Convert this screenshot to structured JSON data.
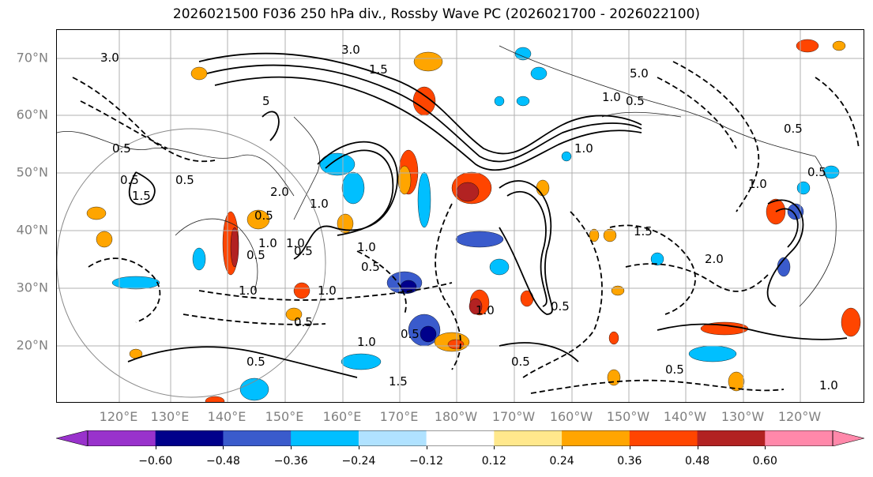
{
  "title": "2026021500 F036 250 hPa div., Rossby Wave PC (2026021700 - 2026022100)",
  "map": {
    "projection": "PlateCarree, Pacific-centered",
    "lon_range": [
      "115°E",
      "115°W"
    ],
    "lat_range": [
      "10°N",
      "75°N"
    ],
    "gridlines": true,
    "gridline_color": "#b0b0b0",
    "latitude_labels": [
      "20°N",
      "30°N",
      "40°N",
      "50°N",
      "60°N",
      "70°N"
    ],
    "longitude_labels": [
      "120°E",
      "130°E",
      "140°E",
      "150°E",
      "160°E",
      "170°E",
      "180°W",
      "170°W",
      "160°W",
      "150°W",
      "140°W",
      "130°W",
      "120°W"
    ],
    "contour_labels": [
      "3.0",
      "5",
      "3.0",
      "1.5",
      "0.5",
      "1.5",
      "0.5",
      "0.5",
      "2.0",
      "1.0",
      "1.0",
      "0.5",
      "0.5",
      "1.0",
      "0.5",
      "1.0",
      "1.0",
      "0.5",
      "1.0",
      "1.5",
      "0.5",
      "0.5",
      "1.0",
      "0.5",
      "1.0",
      "0.5",
      "0.5",
      "0.5",
      "0.5",
      "1.0",
      "2.0",
      "1.5",
      "5.0",
      "1.0",
      "1.0",
      "0.5",
      "0.5",
      "1.0"
    ]
  },
  "colorbar": {
    "colors": [
      "#9932cc",
      "#00008b",
      "#3a5bcc",
      "#00bfff",
      "#b0e2ff",
      "#ffffff",
      "#ffe88c",
      "#ffa500",
      "#ff4500",
      "#b22222",
      "#ff88aa"
    ],
    "tick_labels": [
      "−0.60",
      "−0.48",
      "−0.36",
      "−0.24",
      "−0.12",
      "0.12",
      "0.24",
      "0.36",
      "0.48",
      "0.60"
    ],
    "extend": "both"
  }
}
